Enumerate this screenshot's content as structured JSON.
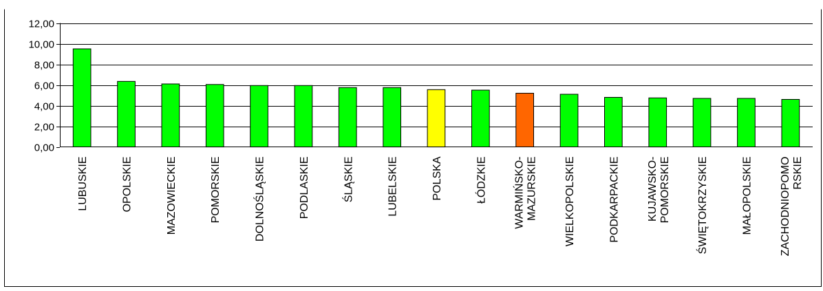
{
  "chart_data": {
    "type": "bar",
    "categories": [
      "LUBUSKIE",
      "OPOLSKIE",
      "MAZOWIECKIE",
      "POMORSKIE",
      "DOLNOŚLĄSKIE",
      "PODLASKIE",
      "ŚLĄSKIE",
      "LUBELSKIE",
      "POLSKA",
      "ŁÓDZKIE",
      "WARMIŃSKO-\nMAZURSKIE",
      "WIELKOPOLSKIE",
      "PODKARPACKIE",
      "KUJAWSKO-\nPOMORSKIE",
      "ŚWIĘTOKRZYSKIE",
      "MAŁOPOLSKIE",
      "ZACHODNIOPOMO\nRSKIE"
    ],
    "values": [
      9.5,
      6.35,
      6.1,
      6.05,
      5.95,
      5.95,
      5.75,
      5.75,
      5.55,
      5.5,
      5.2,
      5.1,
      4.8,
      4.75,
      4.7,
      4.7,
      4.6
    ],
    "bar_colors": [
      "#00ff00",
      "#00ff00",
      "#00ff00",
      "#00ff00",
      "#00ff00",
      "#00ff00",
      "#00ff00",
      "#00ff00",
      "#ffff00",
      "#00ff00",
      "#ff6600",
      "#00ff00",
      "#00ff00",
      "#00ff00",
      "#00ff00",
      "#00ff00",
      "#00ff00"
    ],
    "yticks": [
      "0,00",
      "2,00",
      "4,00",
      "6,00",
      "8,00",
      "10,00",
      "12,00"
    ],
    "ylim": [
      0,
      12
    ],
    "grid": true,
    "legend": "none",
    "title": "",
    "xlabel": "",
    "ylabel": ""
  },
  "colors": {
    "bar_stroke": "#000000",
    "gridline": "#000000",
    "frame": "#000000"
  }
}
